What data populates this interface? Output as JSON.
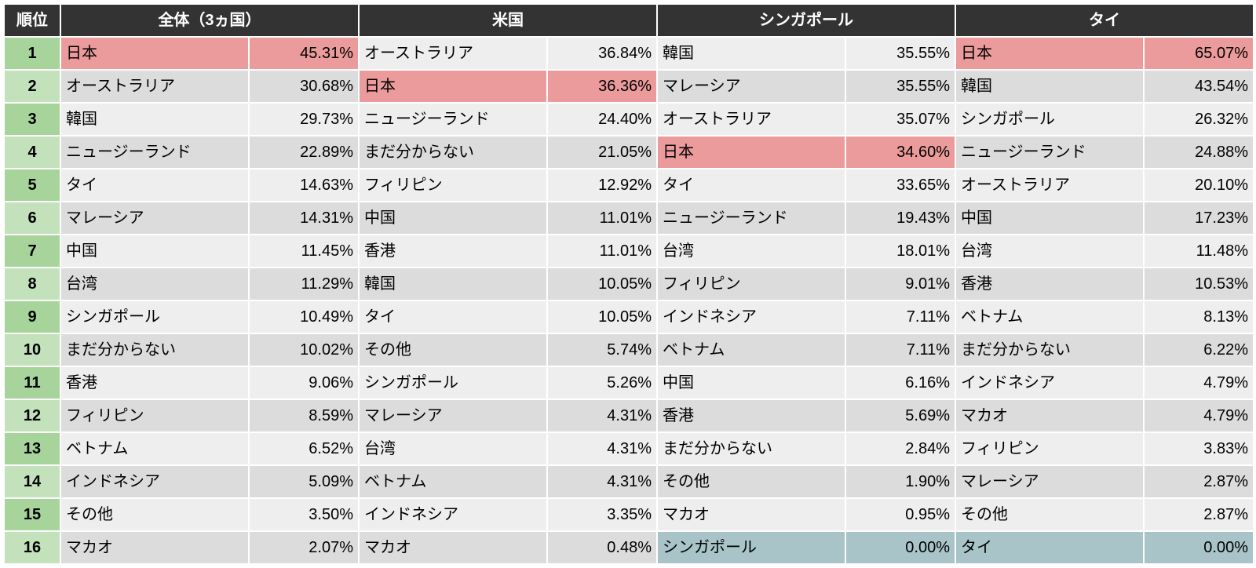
{
  "colors": {
    "header_bg": "#333333",
    "header_fg": "#ffffff",
    "border": "#ffffff",
    "rank_odd": "#a6d49a",
    "rank_even": "#c3e1ba",
    "cell_odd": "#eeeeee",
    "cell_even": "#dcdcdc",
    "highlight_pink": "#eb9b9b",
    "highlight_blue": "#a8c4c8"
  },
  "headers": {
    "rank": "順位",
    "overall": "全体（3ヵ国）",
    "usa": "米国",
    "singapore": "シンガポール",
    "thailand": "タイ"
  },
  "highlight_japan_label": "日本",
  "sections": [
    "overall",
    "usa",
    "singapore",
    "thailand"
  ],
  "rows": [
    {
      "rank": 1,
      "overall": {
        "label": "日本",
        "pct": "45.31%",
        "hl": "pink"
      },
      "usa": {
        "label": "オーストラリア",
        "pct": "36.84%"
      },
      "singapore": {
        "label": "韓国",
        "pct": "35.55%"
      },
      "thailand": {
        "label": "日本",
        "pct": "65.07%",
        "hl": "pink"
      }
    },
    {
      "rank": 2,
      "overall": {
        "label": "オーストラリア",
        "pct": "30.68%"
      },
      "usa": {
        "label": "日本",
        "pct": "36.36%",
        "hl": "pink"
      },
      "singapore": {
        "label": "マレーシア",
        "pct": "35.55%"
      },
      "thailand": {
        "label": "韓国",
        "pct": "43.54%"
      }
    },
    {
      "rank": 3,
      "overall": {
        "label": "韓国",
        "pct": "29.73%"
      },
      "usa": {
        "label": "ニュージーランド",
        "pct": "24.40%"
      },
      "singapore": {
        "label": "オーストラリア",
        "pct": "35.07%"
      },
      "thailand": {
        "label": "シンガポール",
        "pct": "26.32%"
      }
    },
    {
      "rank": 4,
      "overall": {
        "label": "ニュージーランド",
        "pct": "22.89%"
      },
      "usa": {
        "label": "まだ分からない",
        "pct": "21.05%"
      },
      "singapore": {
        "label": "日本",
        "pct": "34.60%",
        "hl": "pink"
      },
      "thailand": {
        "label": "ニュージーランド",
        "pct": "24.88%"
      }
    },
    {
      "rank": 5,
      "overall": {
        "label": "タイ",
        "pct": "14.63%"
      },
      "usa": {
        "label": "フィリピン",
        "pct": "12.92%"
      },
      "singapore": {
        "label": "タイ",
        "pct": "33.65%"
      },
      "thailand": {
        "label": "オーストラリア",
        "pct": "20.10%"
      }
    },
    {
      "rank": 6,
      "overall": {
        "label": "マレーシア",
        "pct": "14.31%"
      },
      "usa": {
        "label": "中国",
        "pct": "11.01%"
      },
      "singapore": {
        "label": "ニュージーランド",
        "pct": "19.43%"
      },
      "thailand": {
        "label": "中国",
        "pct": "17.23%"
      }
    },
    {
      "rank": 7,
      "overall": {
        "label": "中国",
        "pct": "11.45%"
      },
      "usa": {
        "label": "香港",
        "pct": "11.01%"
      },
      "singapore": {
        "label": "台湾",
        "pct": "18.01%"
      },
      "thailand": {
        "label": "台湾",
        "pct": "11.48%"
      }
    },
    {
      "rank": 8,
      "overall": {
        "label": "台湾",
        "pct": "11.29%"
      },
      "usa": {
        "label": "韓国",
        "pct": "10.05%"
      },
      "singapore": {
        "label": "フィリピン",
        "pct": "9.01%"
      },
      "thailand": {
        "label": "香港",
        "pct": "10.53%"
      }
    },
    {
      "rank": 9,
      "overall": {
        "label": "シンガポール",
        "pct": "10.49%"
      },
      "usa": {
        "label": "タイ",
        "pct": "10.05%"
      },
      "singapore": {
        "label": "インドネシア",
        "pct": "7.11%"
      },
      "thailand": {
        "label": "ベトナム",
        "pct": "8.13%"
      }
    },
    {
      "rank": 10,
      "overall": {
        "label": "まだ分からない",
        "pct": "10.02%"
      },
      "usa": {
        "label": "その他",
        "pct": "5.74%"
      },
      "singapore": {
        "label": "ベトナム",
        "pct": "7.11%"
      },
      "thailand": {
        "label": "まだ分からない",
        "pct": "6.22%"
      }
    },
    {
      "rank": 11,
      "overall": {
        "label": "香港",
        "pct": "9.06%"
      },
      "usa": {
        "label": "シンガポール",
        "pct": "5.26%"
      },
      "singapore": {
        "label": "中国",
        "pct": "6.16%"
      },
      "thailand": {
        "label": "インドネシア",
        "pct": "4.79%"
      }
    },
    {
      "rank": 12,
      "overall": {
        "label": "フィリピン",
        "pct": "8.59%"
      },
      "usa": {
        "label": "マレーシア",
        "pct": "4.31%"
      },
      "singapore": {
        "label": "香港",
        "pct": "5.69%"
      },
      "thailand": {
        "label": "マカオ",
        "pct": "4.79%"
      }
    },
    {
      "rank": 13,
      "overall": {
        "label": "ベトナム",
        "pct": "6.52%"
      },
      "usa": {
        "label": "台湾",
        "pct": "4.31%"
      },
      "singapore": {
        "label": "まだ分からない",
        "pct": "2.84%"
      },
      "thailand": {
        "label": "フィリピン",
        "pct": "3.83%"
      }
    },
    {
      "rank": 14,
      "overall": {
        "label": "インドネシア",
        "pct": "5.09%"
      },
      "usa": {
        "label": "ベトナム",
        "pct": "4.31%"
      },
      "singapore": {
        "label": "その他",
        "pct": "1.90%"
      },
      "thailand": {
        "label": "マレーシア",
        "pct": "2.87%"
      }
    },
    {
      "rank": 15,
      "overall": {
        "label": "その他",
        "pct": "3.50%"
      },
      "usa": {
        "label": "インドネシア",
        "pct": "3.35%"
      },
      "singapore": {
        "label": "マカオ",
        "pct": "0.95%"
      },
      "thailand": {
        "label": "その他",
        "pct": "2.87%"
      }
    },
    {
      "rank": 16,
      "overall": {
        "label": "マカオ",
        "pct": "2.07%"
      },
      "usa": {
        "label": "マカオ",
        "pct": "0.48%"
      },
      "singapore": {
        "label": "シンガポール",
        "pct": "0.00%",
        "hl": "blue"
      },
      "thailand": {
        "label": "タイ",
        "pct": "0.00%",
        "hl": "blue"
      }
    }
  ]
}
